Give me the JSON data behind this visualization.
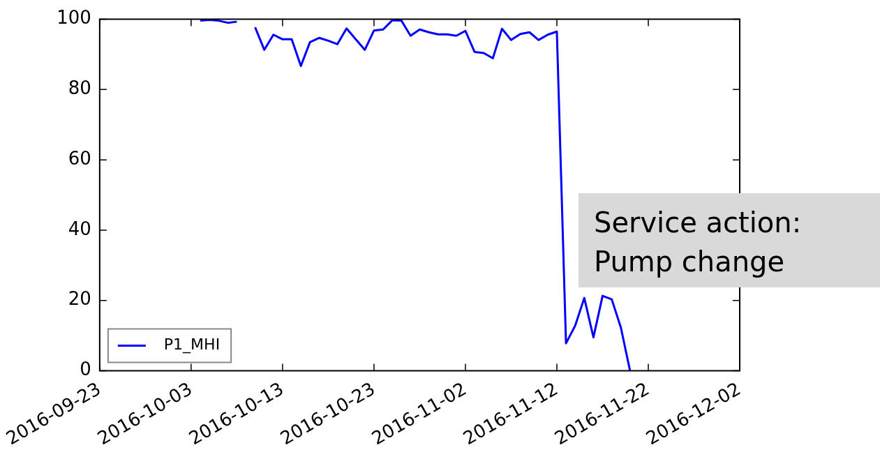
{
  "chart_data": {
    "type": "line",
    "x": [
      "2016-10-04",
      "2016-10-05",
      "2016-10-06",
      "2016-10-07",
      "2016-10-08",
      "2016-10-09",
      "2016-10-10",
      "2016-10-11",
      "2016-10-12",
      "2016-10-13",
      "2016-10-14",
      "2016-10-15",
      "2016-10-16",
      "2016-10-17",
      "2016-10-18",
      "2016-10-19",
      "2016-10-20",
      "2016-10-21",
      "2016-10-22",
      "2016-10-23",
      "2016-10-24",
      "2016-10-25",
      "2016-10-26",
      "2016-10-27",
      "2016-10-28",
      "2016-10-29",
      "2016-10-30",
      "2016-10-31",
      "2016-11-01",
      "2016-11-02",
      "2016-11-03",
      "2016-11-04",
      "2016-11-05",
      "2016-11-06",
      "2016-11-07",
      "2016-11-08",
      "2016-11-09",
      "2016-11-10",
      "2016-11-11",
      "2016-11-12",
      "2016-11-13",
      "2016-11-14",
      "2016-11-15",
      "2016-11-16",
      "2016-11-17",
      "2016-11-18",
      "2016-11-19",
      "2016-11-20"
    ],
    "series": [
      {
        "name": "P1_MHI",
        "color": "#0000ff",
        "values": [
          99.6,
          99.8,
          99.6,
          99.0,
          99.3,
          null,
          97.7,
          91.3,
          95.6,
          94.3,
          94.3,
          86.7,
          93.5,
          94.7,
          93.9,
          92.9,
          97.4,
          94.3,
          91.3,
          96.8,
          97.1,
          99.7,
          99.6,
          95.3,
          97.1,
          96.3,
          95.7,
          95.7,
          95.3,
          96.7,
          90.7,
          90.4,
          88.9,
          97.3,
          94.1,
          95.8,
          96.3,
          94.1,
          95.6,
          96.5,
          7.8,
          12.8,
          20.7,
          9.5,
          21.3,
          20.3,
          12.3,
          0
        ]
      }
    ],
    "xlim": [
      "2016-09-23",
      "2016-12-02"
    ],
    "xticks": [
      "2016-09-23",
      "2016-10-03",
      "2016-10-13",
      "2016-10-23",
      "2016-11-02",
      "2016-11-12",
      "2016-11-22",
      "2016-12-02"
    ],
    "ylim": [
      0,
      100
    ],
    "yticks": [
      0,
      20,
      40,
      60,
      80,
      100
    ],
    "grid": false,
    "legend": "bottom left",
    "marker": "none",
    "line_style": "solid",
    "annotations": [
      "Service action:\nPump change"
    ]
  }
}
